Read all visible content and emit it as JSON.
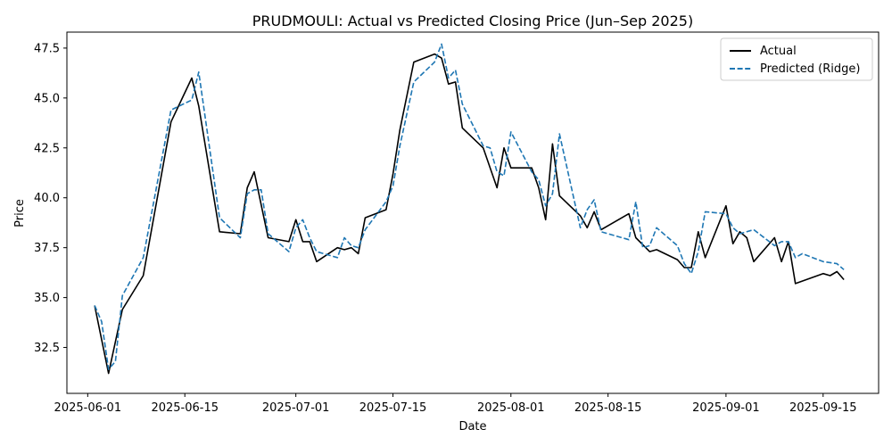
{
  "chart_data": {
    "type": "line",
    "title": "PRUDMOULI: Actual vs Predicted Closing Price (Jun–Sep 2025)",
    "xlabel": "Date",
    "ylabel": "Price",
    "xlim": [
      "2025-05-29",
      "2025-09-23"
    ],
    "ylim": [
      30.2,
      48.3
    ],
    "x_ticks": [
      "2025-06-01",
      "2025-06-15",
      "2025-07-01",
      "2025-07-15",
      "2025-08-01",
      "2025-08-15",
      "2025-09-01",
      "2025-09-15"
    ],
    "y_ticks": [
      32.5,
      35.0,
      37.5,
      40.0,
      42.5,
      45.0,
      47.5
    ],
    "y_tick_labels": [
      "32.5",
      "35.0",
      "37.5",
      "40.0",
      "42.5",
      "45.0",
      "47.5"
    ],
    "grid": false,
    "legend_position": "top-right",
    "series": [
      {
        "name": "Actual",
        "color": "#000000",
        "style": "solid",
        "points": [
          [
            "2025-06-02",
            34.6
          ],
          [
            "2025-06-04",
            31.2
          ],
          [
            "2025-06-06",
            34.4
          ],
          [
            "2025-06-09",
            36.1
          ],
          [
            "2025-06-13",
            43.8
          ],
          [
            "2025-06-16",
            46.0
          ],
          [
            "2025-06-17",
            44.6
          ],
          [
            "2025-06-20",
            38.3
          ],
          [
            "2025-06-23",
            38.2
          ],
          [
            "2025-06-24",
            40.5
          ],
          [
            "2025-06-25",
            41.3
          ],
          [
            "2025-06-27",
            38.0
          ],
          [
            "2025-06-30",
            37.8
          ],
          [
            "2025-07-01",
            38.9
          ],
          [
            "2025-07-02",
            37.8
          ],
          [
            "2025-07-03",
            37.8
          ],
          [
            "2025-07-04",
            36.8
          ],
          [
            "2025-07-07",
            37.5
          ],
          [
            "2025-07-08",
            37.4
          ],
          [
            "2025-07-09",
            37.5
          ],
          [
            "2025-07-10",
            37.2
          ],
          [
            "2025-07-11",
            39.0
          ],
          [
            "2025-07-14",
            39.4
          ],
          [
            "2025-07-15",
            41.2
          ],
          [
            "2025-07-16",
            43.4
          ],
          [
            "2025-07-18",
            46.8
          ],
          [
            "2025-07-21",
            47.2
          ],
          [
            "2025-07-22",
            47.0
          ],
          [
            "2025-07-23",
            45.7
          ],
          [
            "2025-07-24",
            45.8
          ],
          [
            "2025-07-25",
            43.5
          ],
          [
            "2025-07-28",
            42.5
          ],
          [
            "2025-07-30",
            40.5
          ],
          [
            "2025-07-31",
            42.5
          ],
          [
            "2025-08-01",
            41.5
          ],
          [
            "2025-08-04",
            41.5
          ],
          [
            "2025-08-05",
            40.5
          ],
          [
            "2025-08-06",
            38.9
          ],
          [
            "2025-08-07",
            42.7
          ],
          [
            "2025-08-08",
            40.1
          ],
          [
            "2025-08-11",
            39.1
          ],
          [
            "2025-08-12",
            38.5
          ],
          [
            "2025-08-13",
            39.3
          ],
          [
            "2025-08-14",
            38.4
          ],
          [
            "2025-08-18",
            39.2
          ],
          [
            "2025-08-19",
            38.0
          ],
          [
            "2025-08-21",
            37.3
          ],
          [
            "2025-08-22",
            37.4
          ],
          [
            "2025-08-25",
            36.9
          ],
          [
            "2025-08-26",
            36.5
          ],
          [
            "2025-08-27",
            36.5
          ],
          [
            "2025-08-28",
            38.3
          ],
          [
            "2025-08-29",
            37.0
          ],
          [
            "2025-09-01",
            39.6
          ],
          [
            "2025-09-02",
            37.7
          ],
          [
            "2025-09-03",
            38.3
          ],
          [
            "2025-09-04",
            38.0
          ],
          [
            "2025-09-05",
            36.8
          ],
          [
            "2025-09-08",
            38.0
          ],
          [
            "2025-09-09",
            36.8
          ],
          [
            "2025-09-10",
            37.8
          ],
          [
            "2025-09-11",
            35.7
          ],
          [
            "2025-09-15",
            36.2
          ],
          [
            "2025-09-16",
            36.1
          ],
          [
            "2025-09-17",
            36.3
          ],
          [
            "2025-09-18",
            35.9
          ]
        ]
      },
      {
        "name": "Predicted (Ridge)",
        "color": "#1f77b4",
        "style": "dashed",
        "points": [
          [
            "2025-06-02",
            34.6
          ],
          [
            "2025-06-03",
            33.8
          ],
          [
            "2025-06-04",
            31.4
          ],
          [
            "2025-06-05",
            31.8
          ],
          [
            "2025-06-06",
            35.1
          ],
          [
            "2025-06-09",
            37.0
          ],
          [
            "2025-06-13",
            44.4
          ],
          [
            "2025-06-16",
            44.9
          ],
          [
            "2025-06-17",
            46.3
          ],
          [
            "2025-06-20",
            39.0
          ],
          [
            "2025-06-23",
            38.0
          ],
          [
            "2025-06-24",
            40.2
          ],
          [
            "2025-06-25",
            40.4
          ],
          [
            "2025-06-26",
            40.4
          ],
          [
            "2025-06-27",
            38.2
          ],
          [
            "2025-06-30",
            37.3
          ],
          [
            "2025-07-01",
            38.5
          ],
          [
            "2025-07-02",
            38.9
          ],
          [
            "2025-07-03",
            38.0
          ],
          [
            "2025-07-04",
            37.3
          ],
          [
            "2025-07-07",
            37.0
          ],
          [
            "2025-07-08",
            38.0
          ],
          [
            "2025-07-09",
            37.6
          ],
          [
            "2025-07-10",
            37.5
          ],
          [
            "2025-07-11",
            38.4
          ],
          [
            "2025-07-14",
            39.8
          ],
          [
            "2025-07-15",
            40.6
          ],
          [
            "2025-07-16",
            42.6
          ],
          [
            "2025-07-18",
            45.8
          ],
          [
            "2025-07-21",
            46.8
          ],
          [
            "2025-07-22",
            47.7
          ],
          [
            "2025-07-23",
            46.0
          ],
          [
            "2025-07-24",
            46.4
          ],
          [
            "2025-07-25",
            44.7
          ],
          [
            "2025-07-28",
            42.6
          ],
          [
            "2025-07-29",
            42.5
          ],
          [
            "2025-07-30",
            41.3
          ],
          [
            "2025-07-31",
            41.1
          ],
          [
            "2025-08-01",
            43.3
          ],
          [
            "2025-08-04",
            41.3
          ],
          [
            "2025-08-05",
            40.9
          ],
          [
            "2025-08-06",
            39.6
          ],
          [
            "2025-08-07",
            40.2
          ],
          [
            "2025-08-08",
            43.2
          ],
          [
            "2025-08-11",
            38.5
          ],
          [
            "2025-08-12",
            39.4
          ],
          [
            "2025-08-13",
            39.9
          ],
          [
            "2025-08-14",
            38.3
          ],
          [
            "2025-08-18",
            37.9
          ],
          [
            "2025-08-19",
            39.8
          ],
          [
            "2025-08-20",
            37.5
          ],
          [
            "2025-08-21",
            37.6
          ],
          [
            "2025-08-22",
            38.5
          ],
          [
            "2025-08-25",
            37.6
          ],
          [
            "2025-08-26",
            36.7
          ],
          [
            "2025-08-27",
            36.2
          ],
          [
            "2025-08-28",
            37.3
          ],
          [
            "2025-08-29",
            39.3
          ],
          [
            "2025-09-01",
            39.2
          ],
          [
            "2025-09-02",
            38.5
          ],
          [
            "2025-09-03",
            38.2
          ],
          [
            "2025-09-05",
            38.4
          ],
          [
            "2025-09-08",
            37.6
          ],
          [
            "2025-09-09",
            37.8
          ],
          [
            "2025-09-10",
            37.8
          ],
          [
            "2025-09-11",
            37.0
          ],
          [
            "2025-09-12",
            37.2
          ],
          [
            "2025-09-15",
            36.8
          ],
          [
            "2025-09-17",
            36.7
          ],
          [
            "2025-09-18",
            36.4
          ]
        ]
      }
    ]
  }
}
